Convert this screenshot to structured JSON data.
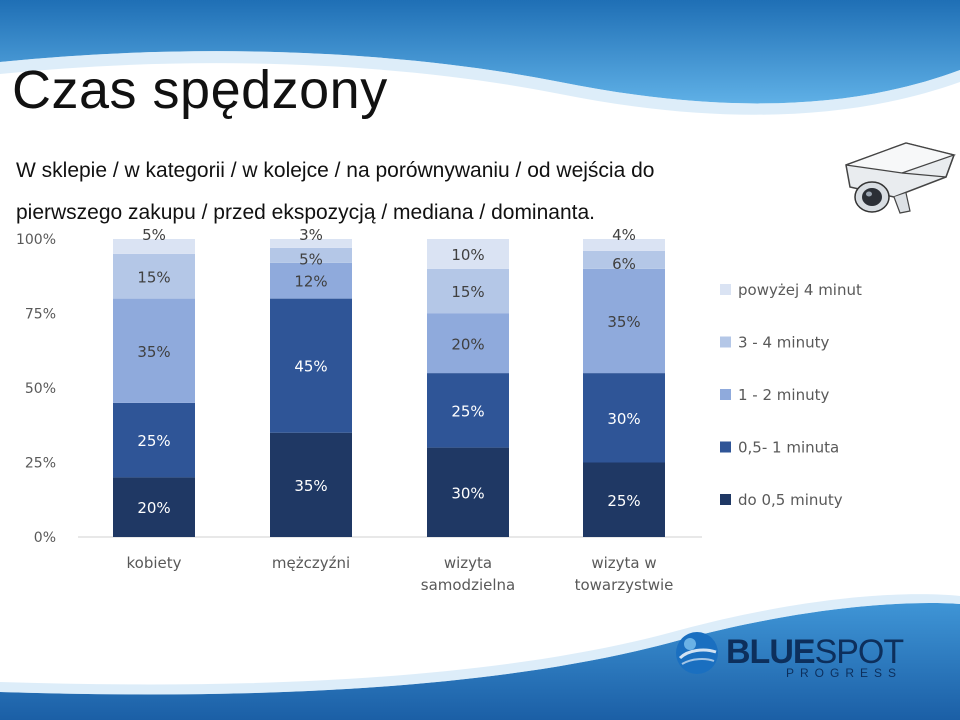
{
  "slide": {
    "title": "Czas spędzony",
    "subtitle": "W sklepie / w kategorii / w kolejce / na porównywaniu / od wejścia do pierwszego zakupu / przed ekspozycją / mediana / dominanta."
  },
  "logo": {
    "brand_bold": "BLUE",
    "brand_light": "SPOT",
    "tagline": "PROGRESS"
  },
  "colors": {
    "header_blue": "#2d7fc4",
    "footer_blue": "#2373bb"
  },
  "chart_data": {
    "type": "bar",
    "stacked": true,
    "percent": true,
    "categories": [
      [
        "kobiety"
      ],
      [
        "mężczyźni"
      ],
      [
        "wizyta",
        "samodzielna"
      ],
      [
        "wizyta w",
        "towarzystwie"
      ]
    ],
    "y_ticks": [
      "0%",
      "25%",
      "50%",
      "75%",
      "100%"
    ],
    "ylim": [
      0,
      100
    ],
    "grid": false,
    "legend_position": "right",
    "series": [
      {
        "name": "do 0,5 minuty",
        "color": "#1f3864",
        "values": [
          20,
          35,
          30,
          25
        ],
        "labels": [
          "20%",
          "35%",
          "30%",
          "25%"
        ]
      },
      {
        "name": "0,5- 1 minuta",
        "color": "#2f5597",
        "values": [
          25,
          45,
          25,
          30
        ],
        "labels": [
          "25%",
          "45%",
          "25%",
          "30%"
        ]
      },
      {
        "name": "1 - 2 minuty",
        "color": "#8faadc",
        "values": [
          35,
          12,
          20,
          35
        ],
        "labels": [
          "35%",
          "12%",
          "20%",
          "35%"
        ]
      },
      {
        "name": "3 - 4 minuty",
        "color": "#b4c7e7",
        "values": [
          15,
          5,
          15,
          6
        ],
        "labels": [
          "15%",
          "5%",
          "15%",
          "6%"
        ]
      },
      {
        "name": "powyżej 4 minut",
        "color": "#dae3f3",
        "values": [
          5,
          3,
          10,
          4
        ],
        "labels": [
          "5%",
          "3%",
          "10%",
          "4%"
        ]
      }
    ]
  }
}
